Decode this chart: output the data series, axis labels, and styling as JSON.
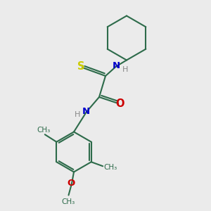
{
  "bg_color": "#ebebeb",
  "bond_color": "#2d6b4a",
  "S_color": "#cccc00",
  "N_color": "#0000cc",
  "O_color": "#cc0000",
  "H_color": "#888888",
  "line_width": 1.5,
  "figsize": [
    3.0,
    3.0
  ],
  "dpi": 100,
  "xlim": [
    0,
    10
  ],
  "ylim": [
    0,
    10
  ]
}
